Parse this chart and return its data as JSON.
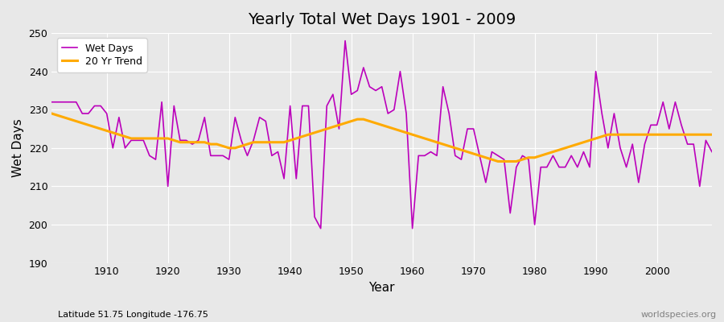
{
  "title": "Yearly Total Wet Days 1901 - 2009",
  "xlabel": "Year",
  "ylabel": "Wet Days",
  "xlim": [
    1901,
    2009
  ],
  "ylim": [
    190,
    250
  ],
  "yticks": [
    190,
    200,
    210,
    220,
    230,
    240,
    250
  ],
  "xticks": [
    1910,
    1920,
    1930,
    1940,
    1950,
    1960,
    1970,
    1980,
    1990,
    2000
  ],
  "wet_days_color": "#bb00bb",
  "trend_color": "#ffaa00",
  "bg_color": "#e8e8e8",
  "grid_color": "#ffffff",
  "subtitle": "Latitude 51.75 Longitude -176.75",
  "watermark": "worldspecies.org",
  "years": [
    1901,
    1902,
    1903,
    1904,
    1905,
    1906,
    1907,
    1908,
    1909,
    1910,
    1911,
    1912,
    1913,
    1914,
    1915,
    1916,
    1917,
    1918,
    1919,
    1920,
    1921,
    1922,
    1923,
    1924,
    1925,
    1926,
    1927,
    1928,
    1929,
    1930,
    1931,
    1932,
    1933,
    1934,
    1935,
    1936,
    1937,
    1938,
    1939,
    1940,
    1941,
    1942,
    1943,
    1944,
    1945,
    1946,
    1947,
    1948,
    1949,
    1950,
    1951,
    1952,
    1953,
    1954,
    1955,
    1956,
    1957,
    1958,
    1959,
    1960,
    1961,
    1962,
    1963,
    1964,
    1965,
    1966,
    1967,
    1968,
    1969,
    1970,
    1971,
    1972,
    1973,
    1974,
    1975,
    1976,
    1977,
    1978,
    1979,
    1980,
    1981,
    1982,
    1983,
    1984,
    1985,
    1986,
    1987,
    1988,
    1989,
    1990,
    1991,
    1992,
    1993,
    1994,
    1995,
    1996,
    1997,
    1998,
    1999,
    2000,
    2001,
    2002,
    2003,
    2004,
    2005,
    2006,
    2007,
    2008,
    2009
  ],
  "wet_days": [
    232,
    232,
    232,
    232,
    232,
    229,
    229,
    231,
    231,
    229,
    220,
    228,
    220,
    222,
    222,
    222,
    218,
    217,
    232,
    210,
    231,
    222,
    222,
    221,
    222,
    228,
    218,
    218,
    218,
    217,
    228,
    222,
    218,
    222,
    228,
    227,
    218,
    219,
    212,
    231,
    212,
    231,
    231,
    202,
    199,
    231,
    234,
    225,
    248,
    234,
    235,
    241,
    236,
    235,
    236,
    229,
    230,
    240,
    229,
    199,
    218,
    218,
    219,
    218,
    236,
    229,
    218,
    217,
    225,
    225,
    218,
    211,
    219,
    218,
    217,
    203,
    215,
    218,
    217,
    200,
    215,
    215,
    218,
    215,
    215,
    218,
    215,
    219,
    215,
    240,
    229,
    220,
    229,
    220,
    215,
    221,
    211,
    221,
    226,
    226,
    232,
    225,
    232,
    226,
    221,
    221,
    210,
    222,
    219
  ],
  "trend": [
    229.0,
    228.5,
    228.0,
    227.5,
    227.0,
    226.5,
    226.0,
    225.5,
    225.0,
    224.5,
    224.0,
    223.5,
    223.0,
    222.5,
    222.5,
    222.5,
    222.5,
    222.5,
    222.5,
    222.5,
    222.0,
    221.5,
    221.5,
    221.5,
    221.5,
    221.5,
    221.0,
    221.0,
    220.5,
    220.0,
    220.0,
    220.5,
    221.0,
    221.5,
    221.5,
    221.5,
    221.5,
    221.5,
    221.5,
    222.0,
    222.5,
    223.0,
    223.5,
    224.0,
    224.5,
    225.0,
    225.5,
    226.0,
    226.5,
    227.0,
    227.5,
    227.5,
    227.0,
    226.5,
    226.0,
    225.5,
    225.0,
    224.5,
    224.0,
    223.5,
    223.0,
    222.5,
    222.0,
    221.5,
    221.0,
    220.5,
    220.0,
    219.5,
    219.0,
    218.5,
    218.0,
    217.5,
    217.0,
    216.5,
    216.5,
    216.5,
    216.5,
    217.0,
    217.5,
    217.5,
    218.0,
    218.5,
    219.0,
    219.5,
    220.0,
    220.5,
    221.0,
    221.5,
    222.0,
    222.5,
    223.0,
    223.5,
    223.5,
    223.5,
    223.5,
    223.5,
    223.5,
    223.5,
    223.5,
    223.5,
    223.5,
    223.5,
    223.5,
    223.5,
    223.5,
    223.5,
    223.5,
    223.5,
    223.5
  ]
}
